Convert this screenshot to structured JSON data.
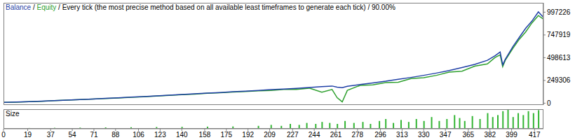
{
  "chart_data": [
    {
      "type": "line",
      "title": "Balance / Equity / Every tick (the most precise method based on all available least timeframes to generate each tick) / 90.00%",
      "x": [
        0,
        10,
        20,
        30,
        40,
        50,
        60,
        70,
        80,
        90,
        100,
        110,
        120,
        130,
        140,
        150,
        160,
        170,
        180,
        190,
        200,
        210,
        220,
        230,
        240,
        250,
        258,
        262,
        266,
        270,
        280,
        290,
        300,
        310,
        320,
        330,
        340,
        350,
        360,
        370,
        380,
        386,
        390,
        392,
        394,
        400,
        405,
        410,
        415,
        420,
        424
      ],
      "series": [
        {
          "name": "Balance",
          "color": "#1f3fa6",
          "values": [
            8000,
            12000,
            17000,
            22000,
            28000,
            34000,
            40000,
            46000,
            52000,
            59000,
            66000,
            73000,
            80000,
            87000,
            95000,
            102000,
            110000,
            117000,
            125000,
            132000,
            140000,
            148000,
            155000,
            163000,
            172000,
            182000,
            188000,
            175000,
            170000,
            185000,
            205000,
            222000,
            240000,
            262000,
            282000,
            305000,
            330000,
            358000,
            390000,
            425000,
            470000,
            520000,
            560000,
            420000,
            480000,
            620000,
            720000,
            820000,
            900000,
            1000000,
            940000
          ]
        },
        {
          "name": "Equity",
          "color": "#2ea02e",
          "values": [
            8000,
            11000,
            16000,
            21000,
            27000,
            33000,
            39000,
            45000,
            51000,
            57000,
            64000,
            71000,
            78000,
            85000,
            93000,
            99000,
            108000,
            114000,
            122000,
            128000,
            136000,
            140000,
            150000,
            150000,
            165000,
            120000,
            150000,
            60000,
            15000,
            140000,
            195000,
            200000,
            225000,
            230000,
            270000,
            280000,
            305000,
            340000,
            350000,
            405000,
            430000,
            500000,
            530000,
            400000,
            470000,
            600000,
            700000,
            780000,
            880000,
            960000,
            920000
          ]
        }
      ],
      "xlim": [
        0,
        424
      ],
      "ylim": [
        -20000,
        1100000
      ],
      "yticks": [
        0,
        249306,
        498613,
        747919,
        997226
      ],
      "grid": false,
      "tick_labels": "y"
    },
    {
      "type": "bar",
      "title": "Size",
      "x": [
        5,
        20,
        40,
        60,
        80,
        100,
        120,
        140,
        160,
        180,
        200,
        210,
        218,
        225,
        232,
        238,
        245,
        250,
        256,
        262,
        268,
        275,
        282,
        288,
        295,
        300,
        306,
        312,
        318,
        324,
        330,
        336,
        342,
        348,
        354,
        358,
        362,
        368,
        374,
        380,
        384,
        388,
        392,
        396,
        400,
        404,
        408,
        412,
        416,
        420
      ],
      "values": [
        0.3,
        0.4,
        0.5,
        0.6,
        0.7,
        0.8,
        0.9,
        1,
        1.1,
        1.2,
        1.5,
        2,
        1.5,
        2.5,
        2,
        3,
        2.5,
        3.5,
        3,
        2.5,
        4,
        3,
        3.5,
        2.5,
        4,
        5,
        3,
        4.5,
        3.5,
        5,
        4,
        6,
        4,
        5,
        7,
        5.5,
        4,
        6.5,
        5,
        8,
        6,
        7,
        9,
        10,
        6,
        8,
        7,
        9,
        8,
        9.5
      ],
      "color": "#33b533",
      "xlim": [
        0,
        424
      ],
      "xticks": [
        0,
        19,
        37,
        54,
        71,
        88,
        106,
        123,
        140,
        158,
        175,
        192,
        209,
        227,
        244,
        261,
        278,
        296,
        313,
        330,
        347,
        365,
        382,
        399,
        417
      ],
      "ylim": [
        0,
        10
      ],
      "grid": false,
      "tick_labels": "x"
    }
  ]
}
